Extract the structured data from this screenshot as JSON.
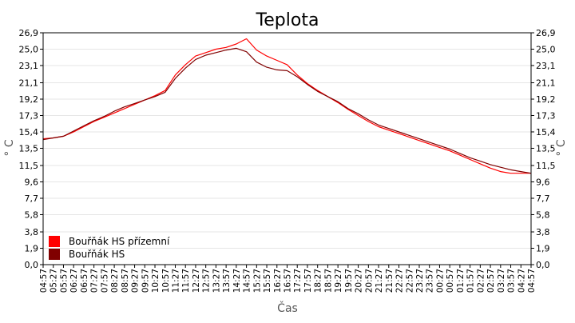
{
  "chart_data": {
    "type": "line",
    "title": "Teplota",
    "xlabel": "Čas",
    "ylabel": "° C",
    "ylim": [
      0,
      26.9
    ],
    "yticks": [
      "26,9",
      "25,0",
      "23,1",
      "21,1",
      "19,2",
      "17,3",
      "15,4",
      "13,5",
      "11,5",
      "9,6",
      "7,7",
      "5,8",
      "3,8",
      "1,9",
      "0,0"
    ],
    "x_categories": [
      "04:57",
      "05:27",
      "05:57",
      "06:27",
      "06:57",
      "07:27",
      "07:57",
      "08:27",
      "08:57",
      "09:27",
      "09:57",
      "10:27",
      "10:57",
      "11:27",
      "11:57",
      "12:27",
      "12:57",
      "13:27",
      "13:57",
      "14:27",
      "14:57",
      "15:27",
      "15:57",
      "16:27",
      "16:57",
      "17:27",
      "17:57",
      "18:27",
      "18:57",
      "19:27",
      "19:57",
      "20:27",
      "20:57",
      "21:27",
      "21:57",
      "22:27",
      "22:57",
      "23:27",
      "23:57",
      "00:27",
      "00:57",
      "01:27",
      "01:57",
      "02:27",
      "02:57",
      "03:27",
      "03:57",
      "04:27",
      "04:57"
    ],
    "grid": true,
    "legend": "bottom-left",
    "series": [
      {
        "name": "Bouřňák HS přízemní",
        "color": "#ff0000",
        "values": [
          14.6,
          14.7,
          14.9,
          15.4,
          16.0,
          16.6,
          17.1,
          17.6,
          18.1,
          18.6,
          19.1,
          19.6,
          20.2,
          22.0,
          23.2,
          24.2,
          24.6,
          25.0,
          25.2,
          25.6,
          26.2,
          24.9,
          24.2,
          23.7,
          23.2,
          22.0,
          21.0,
          20.2,
          19.5,
          18.8,
          18.0,
          17.3,
          16.6,
          16.0,
          15.6,
          15.2,
          14.8,
          14.4,
          14.0,
          13.6,
          13.2,
          12.7,
          12.2,
          11.7,
          11.2,
          10.8,
          10.6,
          10.6,
          10.6
        ]
      },
      {
        "name": "Bouřňák HS",
        "color": "#800000",
        "values": [
          14.5,
          14.7,
          14.9,
          15.5,
          16.1,
          16.7,
          17.2,
          17.8,
          18.3,
          18.7,
          19.1,
          19.5,
          20.0,
          21.6,
          22.8,
          23.8,
          24.3,
          24.6,
          24.9,
          25.1,
          24.7,
          23.5,
          22.9,
          22.6,
          22.5,
          21.8,
          20.9,
          20.1,
          19.5,
          18.9,
          18.1,
          17.5,
          16.8,
          16.2,
          15.8,
          15.4,
          15.0,
          14.6,
          14.2,
          13.8,
          13.4,
          12.9,
          12.4,
          12.0,
          11.6,
          11.3,
          11.0,
          10.8,
          10.6
        ]
      }
    ]
  }
}
